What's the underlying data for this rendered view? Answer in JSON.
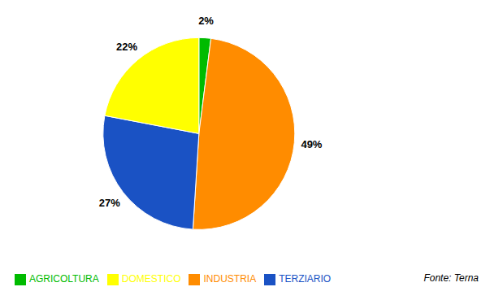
{
  "chart_data": {
    "type": "pie",
    "categories": [
      "AGRICOLTURA",
      "INDUSTRIA",
      "TERZIARIO",
      "DOMESTICO"
    ],
    "values": [
      2,
      49,
      27,
      22
    ],
    "value_labels": [
      "2%",
      "49%",
      "27%",
      "22%"
    ],
    "colors": [
      "#00bb00",
      "#ff8c00",
      "#1a52c4",
      "#ffff00"
    ],
    "data_labels": true,
    "legend": "bottom",
    "annotation": "Fonte: Terna"
  }
}
